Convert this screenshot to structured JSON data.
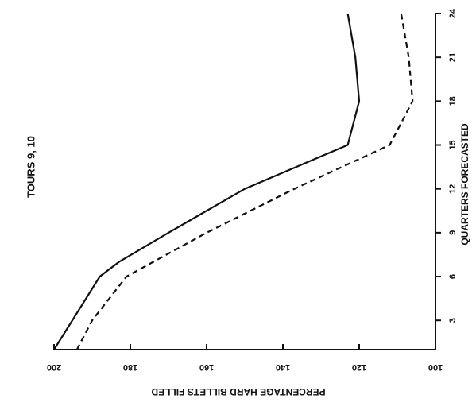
{
  "chart_data": {
    "type": "line",
    "title": "TOURS 9, 10",
    "xlabel": "QUARTERS FORECASTED",
    "ylabel": "PERCENTAGE HARD BILLETS FILLED",
    "xlim": [
      1,
      24
    ],
    "ylim": [
      100,
      200
    ],
    "x_ticks": [
      3,
      6,
      9,
      12,
      15,
      18,
      21,
      24
    ],
    "x_tick_labels": [
      "3",
      "6",
      "9",
      "12",
      "15",
      "18",
      "21",
      "24"
    ],
    "y_ticks": [
      100,
      120,
      140,
      160,
      180,
      200
    ],
    "y_tick_labels": [
      "100",
      "120",
      "140",
      "160",
      "180",
      "200"
    ],
    "grid": false,
    "series": [
      {
        "style": "solid",
        "color": "#111111",
        "x": [
          1,
          6,
          7,
          9,
          12,
          15,
          18,
          21,
          24
        ],
        "y": [
          200,
          188,
          183,
          170,
          150,
          123,
          120,
          121,
          123
        ]
      },
      {
        "style": "dashed",
        "color": "#111111",
        "x": [
          1,
          3,
          6,
          9,
          12,
          15,
          18,
          21,
          24
        ],
        "y": [
          194,
          190,
          181,
          160,
          137,
          112,
          106,
          107,
          109
        ]
      }
    ]
  }
}
